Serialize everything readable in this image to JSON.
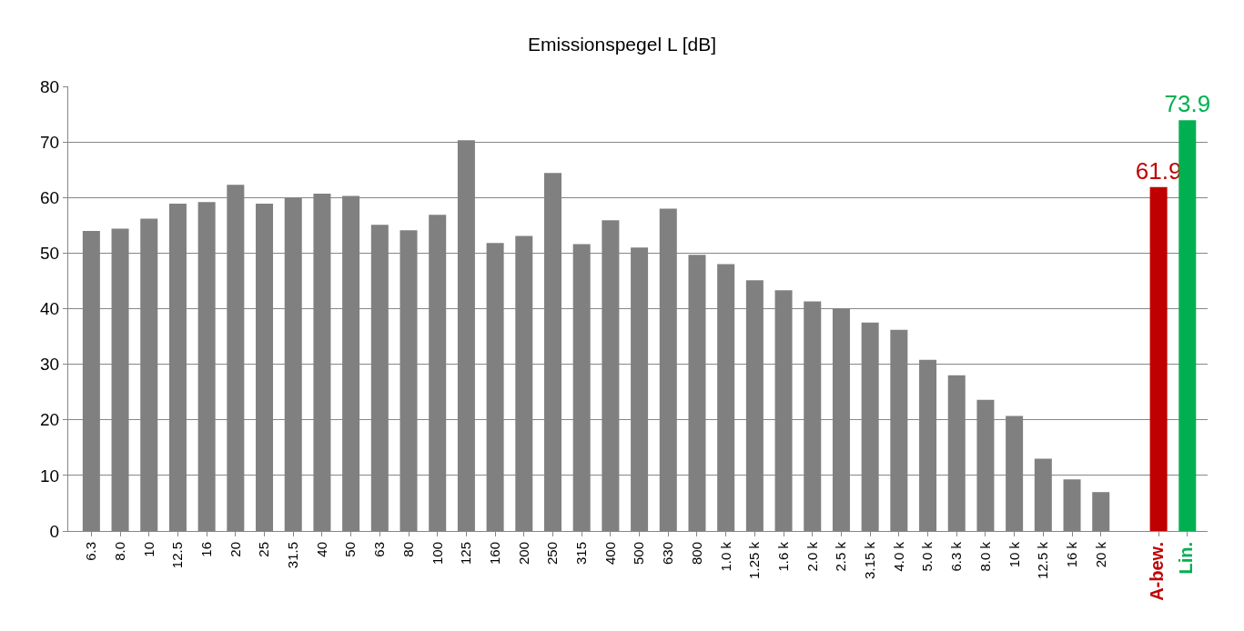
{
  "chart_data": {
    "type": "bar",
    "title": "Emissionspegel L [dB]",
    "categories": [
      "6.3",
      "8.0",
      "10",
      "12.5",
      "16",
      "20",
      "25",
      "31.5",
      "40",
      "50",
      "63",
      "80",
      "100",
      "125",
      "160",
      "200",
      "250",
      "315",
      "400",
      "500",
      "630",
      "800",
      "1.0 k",
      "1.25 k",
      "1.6 k",
      "2.0 k",
      "2.5 k",
      "3.15 k",
      "4.0 k",
      "5.0 k",
      "6.3 k",
      "8.0 k",
      "10 k",
      "12.5 k",
      "16 k",
      "20 k",
      null,
      "A-bew.",
      "Lin."
    ],
    "values": [
      54.0,
      54.4,
      56.2,
      58.9,
      59.2,
      62.3,
      58.9,
      60.0,
      60.7,
      60.3,
      55.1,
      54.1,
      56.9,
      70.3,
      51.8,
      53.1,
      64.4,
      51.6,
      55.9,
      51.0,
      58.0,
      49.7,
      48.0,
      45.1,
      43.3,
      41.3,
      40.0,
      37.5,
      36.2,
      30.8,
      28.0,
      23.6,
      20.7,
      13.0,
      9.3,
      7.0,
      null,
      61.9,
      73.9
    ],
    "colors": [
      "#808080",
      "#808080",
      "#808080",
      "#808080",
      "#808080",
      "#808080",
      "#808080",
      "#808080",
      "#808080",
      "#808080",
      "#808080",
      "#808080",
      "#808080",
      "#808080",
      "#808080",
      "#808080",
      "#808080",
      "#808080",
      "#808080",
      "#808080",
      "#808080",
      "#808080",
      "#808080",
      "#808080",
      "#808080",
      "#808080",
      "#808080",
      "#808080",
      "#808080",
      "#808080",
      "#808080",
      "#808080",
      "#808080",
      "#808080",
      "#808080",
      "#808080",
      "#808080",
      "#c00000",
      "#00b050"
    ],
    "value_labels": [
      null,
      null,
      null,
      null,
      null,
      null,
      null,
      null,
      null,
      null,
      null,
      null,
      null,
      null,
      null,
      null,
      null,
      null,
      null,
      null,
      null,
      null,
      null,
      null,
      null,
      null,
      null,
      null,
      null,
      null,
      null,
      null,
      null,
      null,
      null,
      null,
      null,
      "61.9",
      "73.9"
    ],
    "ylim": [
      0,
      80
    ],
    "yticks": [
      0,
      10,
      20,
      30,
      40,
      50,
      60,
      70,
      80
    ],
    "grid": "y"
  }
}
